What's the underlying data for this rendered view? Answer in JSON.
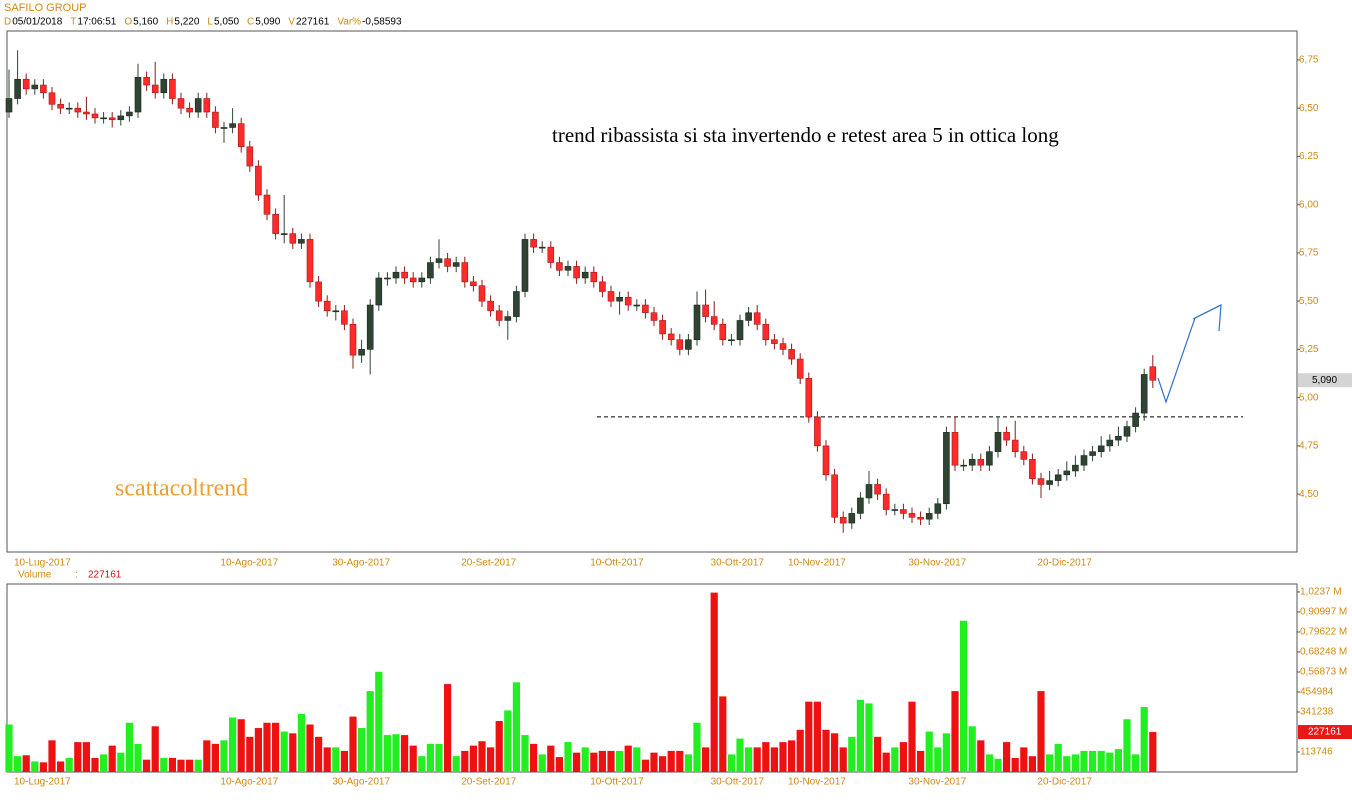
{
  "header": {
    "symbol": "SAFILO GROUP",
    "fields": [
      {
        "key": "D",
        "value": "05/01/2018"
      },
      {
        "key": "T",
        "value": "17:06:51"
      },
      {
        "key": "O",
        "value": "5,160"
      },
      {
        "key": "H",
        "value": "5,220"
      },
      {
        "key": "L",
        "value": "5,050"
      },
      {
        "key": "C",
        "value": "5,090"
      },
      {
        "key": "V",
        "value": "227161"
      },
      {
        "key": "Var%",
        "value": "-0,58593"
      }
    ]
  },
  "chart_data": {
    "type": "candlestick",
    "categories": [
      "10-Lug-2017",
      null,
      null,
      null,
      null,
      null,
      null,
      null,
      null,
      null,
      null,
      null,
      null,
      null,
      null,
      null,
      null,
      null,
      null,
      null,
      null,
      null,
      null,
      null,
      "10-Ago-2017",
      null,
      null,
      null,
      null,
      null,
      null,
      null,
      null,
      null,
      null,
      null,
      null,
      "30-Ago-2017",
      null,
      null,
      null,
      null,
      null,
      null,
      null,
      null,
      null,
      null,
      null,
      null,
      null,
      null,
      "20-Set-2017",
      null,
      null,
      null,
      null,
      null,
      null,
      null,
      null,
      null,
      null,
      null,
      null,
      null,
      null,
      "10-Ott-2017",
      null,
      null,
      null,
      null,
      null,
      null,
      null,
      null,
      null,
      null,
      null,
      null,
      null,
      "30-Ott-2017",
      null,
      null,
      null,
      null,
      null,
      null,
      null,
      null,
      "10-Nov-2017",
      null,
      null,
      null,
      null,
      null,
      null,
      null,
      null,
      null,
      null,
      null,
      null,
      null,
      "30-Nov-2017",
      null,
      null,
      null,
      null,
      null,
      null,
      null,
      null,
      null,
      null,
      null,
      null,
      null,
      null,
      "20-Dic-2017",
      null,
      null,
      null,
      null,
      null,
      null,
      null,
      null,
      null,
      null,
      null,
      null,
      null,
      null
    ],
    "open": [
      6.48,
      6.55,
      6.65,
      6.6,
      6.62,
      6.58,
      6.52,
      6.5,
      6.5,
      6.48,
      6.47,
      6.45,
      6.45,
      6.44,
      6.46,
      6.48,
      6.66,
      6.62,
      6.58,
      6.65,
      6.55,
      6.5,
      6.48,
      6.55,
      6.48,
      6.4,
      6.4,
      6.42,
      6.3,
      6.2,
      6.05,
      5.95,
      5.85,
      5.85,
      5.8,
      5.82,
      5.6,
      5.5,
      5.45,
      5.45,
      5.38,
      5.22,
      5.25,
      5.48,
      5.62,
      5.62,
      5.65,
      5.62,
      5.6,
      5.62,
      5.7,
      5.72,
      5.68,
      5.7,
      5.6,
      5.58,
      5.5,
      5.45,
      5.4,
      5.42,
      5.55,
      5.82,
      5.78,
      5.78,
      5.7,
      5.66,
      5.68,
      5.62,
      5.65,
      5.6,
      5.55,
      5.5,
      5.52,
      5.48,
      5.48,
      5.44,
      5.4,
      5.33,
      5.3,
      5.25,
      5.3,
      5.48,
      5.42,
      5.38,
      5.3,
      5.3,
      5.4,
      5.44,
      5.38,
      5.3,
      5.28,
      5.25,
      5.2,
      5.1,
      4.9,
      4.75,
      4.6,
      4.38,
      4.35,
      4.4,
      4.48,
      4.55,
      4.5,
      4.42,
      4.42,
      4.4,
      4.38,
      4.37,
      4.4,
      4.45,
      4.82,
      4.65,
      4.65,
      4.68,
      4.65,
      4.72,
      4.82,
      4.78,
      4.72,
      4.68,
      4.58,
      4.55,
      4.57,
      4.6,
      4.62,
      4.65,
      4.7,
      4.72,
      4.75,
      4.78,
      4.8,
      4.85,
      4.92,
      5.16
    ],
    "high": [
      6.7,
      6.8,
      6.68,
      6.65,
      6.65,
      6.61,
      6.55,
      6.53,
      6.53,
      6.56,
      6.5,
      6.48,
      6.48,
      6.49,
      6.51,
      6.73,
      6.69,
      6.74,
      6.68,
      6.68,
      6.58,
      6.53,
      6.58,
      6.58,
      6.51,
      6.43,
      6.5,
      6.45,
      6.33,
      6.23,
      6.08,
      5.98,
      6.05,
      5.88,
      5.85,
      5.85,
      5.63,
      5.53,
      5.48,
      5.48,
      5.41,
      5.3,
      5.51,
      5.65,
      5.65,
      5.68,
      5.68,
      5.65,
      5.65,
      5.73,
      5.82,
      5.75,
      5.73,
      5.73,
      5.63,
      5.61,
      5.53,
      5.48,
      5.45,
      5.58,
      5.85,
      5.85,
      5.81,
      5.81,
      5.73,
      5.71,
      5.71,
      5.68,
      5.68,
      5.63,
      5.58,
      5.55,
      5.55,
      5.51,
      5.51,
      5.47,
      5.43,
      5.36,
      5.33,
      5.33,
      5.55,
      5.56,
      5.5,
      5.41,
      5.33,
      5.43,
      5.47,
      5.48,
      5.41,
      5.33,
      5.31,
      5.28,
      5.23,
      5.13,
      4.93,
      4.78,
      4.63,
      4.41,
      4.43,
      4.51,
      4.62,
      4.58,
      4.53,
      4.45,
      4.45,
      4.43,
      4.41,
      4.43,
      4.48,
      4.85,
      4.9,
      4.68,
      4.71,
      4.71,
      4.75,
      4.9,
      4.85,
      4.88,
      4.75,
      4.71,
      4.61,
      4.62,
      4.63,
      4.67,
      4.7,
      4.73,
      4.75,
      4.8,
      4.81,
      4.85,
      4.88,
      4.95,
      5.15,
      5.22
    ],
    "low": [
      6.45,
      6.52,
      6.57,
      6.57,
      6.55,
      6.49,
      6.47,
      6.47,
      6.45,
      6.44,
      6.42,
      6.42,
      6.4,
      6.41,
      6.43,
      6.45,
      6.59,
      6.55,
      6.55,
      6.52,
      6.47,
      6.45,
      6.45,
      6.45,
      6.37,
      6.32,
      6.37,
      6.27,
      6.17,
      6.02,
      5.92,
      5.82,
      5.8,
      5.77,
      5.77,
      5.57,
      5.47,
      5.42,
      5.4,
      5.35,
      5.15,
      5.18,
      5.12,
      5.45,
      5.58,
      5.59,
      5.59,
      5.57,
      5.57,
      5.59,
      5.67,
      5.65,
      5.65,
      5.57,
      5.55,
      5.47,
      5.42,
      5.37,
      5.3,
      5.39,
      5.52,
      5.75,
      5.75,
      5.67,
      5.63,
      5.63,
      5.59,
      5.59,
      5.57,
      5.52,
      5.47,
      5.43,
      5.45,
      5.45,
      5.41,
      5.37,
      5.3,
      5.27,
      5.22,
      5.22,
      5.27,
      5.39,
      5.35,
      5.27,
      5.27,
      5.27,
      5.37,
      5.35,
      5.27,
      5.25,
      5.22,
      5.17,
      5.07,
      4.87,
      4.72,
      4.57,
      4.35,
      4.3,
      4.32,
      4.37,
      4.45,
      4.47,
      4.39,
      4.39,
      4.37,
      4.35,
      4.34,
      4.34,
      4.37,
      4.42,
      4.62,
      4.62,
      4.62,
      4.62,
      4.62,
      4.69,
      4.75,
      4.69,
      4.65,
      4.55,
      4.48,
      4.52,
      4.54,
      4.57,
      4.59,
      4.62,
      4.67,
      4.69,
      4.72,
      4.75,
      4.77,
      4.82,
      4.88,
      5.05
    ],
    "close": [
      6.55,
      6.65,
      6.6,
      6.62,
      6.58,
      6.52,
      6.5,
      6.5,
      6.48,
      6.47,
      6.45,
      6.45,
      6.44,
      6.46,
      6.48,
      6.66,
      6.62,
      6.58,
      6.65,
      6.55,
      6.5,
      6.48,
      6.55,
      6.48,
      6.4,
      6.4,
      6.42,
      6.3,
      6.2,
      6.05,
      5.95,
      5.85,
      5.85,
      5.8,
      5.82,
      5.6,
      5.5,
      5.45,
      5.45,
      5.38,
      5.22,
      5.25,
      5.48,
      5.62,
      5.62,
      5.65,
      5.62,
      5.6,
      5.62,
      5.7,
      5.72,
      5.68,
      5.7,
      5.6,
      5.58,
      5.5,
      5.45,
      5.4,
      5.42,
      5.55,
      5.82,
      5.78,
      5.78,
      5.7,
      5.66,
      5.68,
      5.62,
      5.65,
      5.6,
      5.55,
      5.5,
      5.52,
      5.48,
      5.48,
      5.44,
      5.4,
      5.33,
      5.3,
      5.25,
      5.3,
      5.48,
      5.42,
      5.38,
      5.3,
      5.3,
      5.4,
      5.44,
      5.38,
      5.3,
      5.28,
      5.25,
      5.2,
      5.1,
      4.9,
      4.75,
      4.6,
      4.38,
      4.35,
      4.4,
      4.48,
      4.55,
      4.5,
      4.42,
      4.42,
      4.4,
      4.38,
      4.37,
      4.4,
      4.45,
      4.82,
      4.65,
      4.65,
      4.68,
      4.65,
      4.72,
      4.82,
      4.78,
      4.72,
      4.68,
      4.58,
      4.55,
      4.57,
      4.6,
      4.62,
      4.65,
      4.7,
      4.72,
      4.75,
      4.78,
      4.8,
      4.85,
      4.92,
      5.12,
      5.09
    ],
    "up_color": "#2f4433",
    "down_color": "#ff2b2b",
    "ylim": [
      4.2,
      6.9
    ],
    "yticks": [
      {
        "value": 4.5,
        "label": "4,50"
      },
      {
        "value": 4.75,
        "label": "4,75"
      },
      {
        "value": 5,
        "label": "5,00"
      },
      {
        "value": 5.25,
        "label": "5,25"
      },
      {
        "value": 5.5,
        "label": "5,50"
      },
      {
        "value": 5.75,
        "label": "5,75"
      },
      {
        "value": 6,
        "label": "6,00"
      },
      {
        "value": 6.25,
        "label": "6,25"
      },
      {
        "value": 6.5,
        "label": "6,50"
      },
      {
        "value": 6.75,
        "label": "6,75"
      }
    ],
    "last_price_label": "5,090",
    "support_level": 4.9,
    "annotations": [
      "trend ribassista si sta invertendo e retest area 5 in ottica long",
      "scattacoltrend"
    ],
    "volume": {
      "label": "Volume",
      "separator": ":",
      "current_label": "227161",
      "values": [
        270000,
        90000,
        95000,
        60000,
        55000,
        180000,
        60000,
        80000,
        170000,
        170000,
        80000,
        100000,
        150000,
        110000,
        280000,
        160000,
        70000,
        260000,
        80000,
        80000,
        70000,
        70000,
        70000,
        180000,
        160000,
        180000,
        310000,
        300000,
        200000,
        250000,
        280000,
        280000,
        230000,
        220000,
        330000,
        270000,
        200000,
        140000,
        140000,
        120000,
        315000,
        250000,
        460000,
        570000,
        210000,
        215000,
        210000,
        150000,
        90000,
        160000,
        160000,
        500000,
        90000,
        120000,
        150000,
        175000,
        140000,
        290000,
        350000,
        510000,
        210000,
        160000,
        100000,
        150000,
        85000,
        170000,
        110000,
        140000,
        110000,
        120000,
        120000,
        120000,
        150000,
        140000,
        70000,
        110000,
        90000,
        120000,
        120000,
        100000,
        280000,
        140000,
        1020000,
        430000,
        100000,
        190000,
        140000,
        140000,
        170000,
        140000,
        170000,
        180000,
        240000,
        400000,
        400000,
        240000,
        220000,
        140000,
        200000,
        410000,
        390000,
        200000,
        110000,
        140000,
        170000,
        400000,
        120000,
        230000,
        140000,
        220000,
        460000,
        860000,
        260000,
        180000,
        100000,
        75000,
        170000,
        80000,
        140000,
        90000,
        460000,
        100000,
        160000,
        90000,
        100000,
        120000,
        120000,
        120000,
        110000,
        130000,
        300000,
        100000,
        370000,
        227161
      ],
      "up_color": "#22ee22",
      "down_color": "#ee1111",
      "ylim": [
        0,
        1069000
      ],
      "yticks": [
        113746,
        341238,
        454984,
        {
          "value": 568730,
          "label": "0,56873 M"
        },
        {
          "value": 682480,
          "label": "0,68248 M"
        },
        {
          "value": 796220,
          "label": "0,79622 M"
        },
        {
          "value": 909970,
          "label": "0,90997 M"
        },
        {
          "value": 1023700,
          "label": "1,0237 M"
        }
      ]
    }
  }
}
